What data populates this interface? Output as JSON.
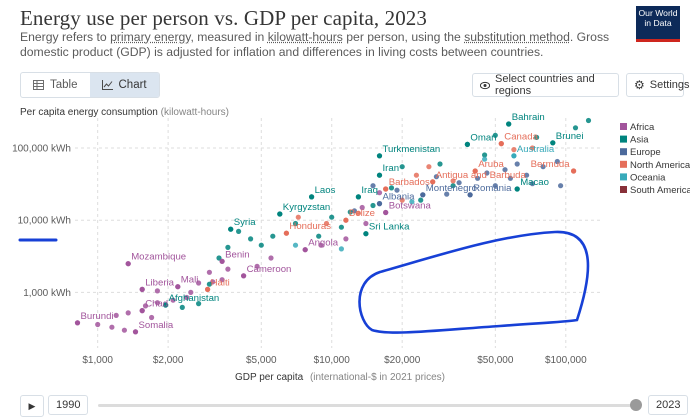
{
  "header": {
    "title": "Energy use per person vs. GDP per capita, 2023",
    "subtitle_parts": [
      {
        "text": "Energy refers to ",
        "link": false
      },
      {
        "text": "primary energy",
        "link": true
      },
      {
        "text": ", measured in ",
        "link": false
      },
      {
        "text": "kilowatt-hours",
        "link": true
      },
      {
        "text": " per person, using the ",
        "link": false
      },
      {
        "text": "substitution method",
        "link": true
      },
      {
        "text": ". Gross domestic product (GDP) is adjusted for inflation and differences in living costs between countries.",
        "link": false
      }
    ],
    "logo_line1": "Our World",
    "logo_line2": "in Data"
  },
  "controls": {
    "tab_table": "Table",
    "tab_chart": "Chart",
    "select_countries": "Select countries and regions",
    "settings": "Settings",
    "year_start": "1990",
    "year_end": "2023",
    "timeline_position": 1.0
  },
  "colors": {
    "Africa": "#a2559c",
    "Asia": "#00847e",
    "Europe": "#4c6a9c",
    "North America": "#e56e5a",
    "Oceania": "#38aaba",
    "South America": "#883039",
    "grid": "#dddddd",
    "annotation": "#1740d6"
  },
  "chart_data": {
    "type": "scatter",
    "title": "Energy use per person vs. GDP per capita, 2023",
    "ylabel": "Per capita energy consumption",
    "ylabel_unit": "(kilowatt-hours)",
    "xlabel": "GDP per capita",
    "xlabel_unit": "(international-$ in 2021 prices)",
    "xscale": "log",
    "yscale": "log",
    "xlim": [
      800,
      140000
    ],
    "ylim": [
      170,
      260000
    ],
    "x_ticks": [
      {
        "value": 1000,
        "label": "$1,000"
      },
      {
        "value": 2000,
        "label": "$2,000"
      },
      {
        "value": 5000,
        "label": "$5,000"
      },
      {
        "value": 10000,
        "label": "$10,000"
      },
      {
        "value": 20000,
        "label": "$20,000"
      },
      {
        "value": 50000,
        "label": "$50,000"
      },
      {
        "value": 100000,
        "label": "$100,000"
      }
    ],
    "y_ticks": [
      {
        "value": 1000,
        "label": "1,000 kWh"
      },
      {
        "value": 10000,
        "label": "10,000 kWh"
      },
      {
        "value": 100000,
        "label": "100,000 kWh"
      }
    ],
    "legend": [
      "Africa",
      "Asia",
      "Europe",
      "North America",
      "Oceania",
      "South America"
    ],
    "legend_position": "right",
    "labeled_points": [
      {
        "name": "Bahrain",
        "region": "Asia",
        "x": 57000,
        "y": 215000
      },
      {
        "name": "Oman",
        "region": "Asia",
        "x": 38000,
        "y": 112000
      },
      {
        "name": "Canada",
        "region": "North America",
        "x": 53000,
        "y": 115000
      },
      {
        "name": "Brunei",
        "region": "Asia",
        "x": 88000,
        "y": 118000
      },
      {
        "name": "Australia",
        "region": "Oceania",
        "x": 60000,
        "y": 78000
      },
      {
        "name": "Turkmenistan",
        "region": "Asia",
        "x": 16000,
        "y": 78000
      },
      {
        "name": "Aruba",
        "region": "North America",
        "x": 41000,
        "y": 48000
      },
      {
        "name": "Bermuda",
        "region": "North America",
        "x": 108000,
        "y": 48000
      },
      {
        "name": "Iran",
        "region": "Asia",
        "x": 16000,
        "y": 42000
      },
      {
        "name": "Antigua and Barbuda",
        "region": "North America",
        "x": 27000,
        "y": 34000
      },
      {
        "name": "Barbados",
        "region": "North America",
        "x": 17000,
        "y": 27000
      },
      {
        "name": "Macao",
        "region": "Asia",
        "x": 62000,
        "y": 27000
      },
      {
        "name": "Montenegro",
        "region": "Europe",
        "x": 24500,
        "y": 22500
      },
      {
        "name": "Romania",
        "region": "Europe",
        "x": 39000,
        "y": 22500
      },
      {
        "name": "Laos",
        "region": "Asia",
        "x": 8200,
        "y": 21000
      },
      {
        "name": "Iraq",
        "region": "Asia",
        "x": 13000,
        "y": 21000
      },
      {
        "name": "Albania",
        "region": "Europe",
        "x": 16000,
        "y": 17000
      },
      {
        "name": "Kyrgyzstan",
        "region": "Asia",
        "x": 6000,
        "y": 12200
      },
      {
        "name": "Botswana",
        "region": "Africa",
        "x": 17000,
        "y": 12800
      },
      {
        "name": "Belize",
        "region": "North America",
        "x": 11500,
        "y": 10000
      },
      {
        "name": "Syria",
        "region": "Asia",
        "x": 3700,
        "y": 7500
      },
      {
        "name": "Honduras",
        "region": "North America",
        "x": 6400,
        "y": 6600
      },
      {
        "name": "Sri Lanka",
        "region": "Asia",
        "x": 14000,
        "y": 6500
      },
      {
        "name": "Angola",
        "region": "Africa",
        "x": 7700,
        "y": 3900
      },
      {
        "name": "Mozambique",
        "region": "Africa",
        "x": 1350,
        "y": 2500
      },
      {
        "name": "Benin",
        "region": "Africa",
        "x": 3400,
        "y": 2700
      },
      {
        "name": "Cameroon",
        "region": "Africa",
        "x": 4200,
        "y": 1700
      },
      {
        "name": "Liberia",
        "region": "Africa",
        "x": 1550,
        "y": 1100
      },
      {
        "name": "Mali",
        "region": "Africa",
        "x": 2200,
        "y": 1200
      },
      {
        "name": "Haiti",
        "region": "North America",
        "x": 2950,
        "y": 1100
      },
      {
        "name": "Afghanistan",
        "region": "Asia",
        "x": 1950,
        "y": 670
      },
      {
        "name": "Chad",
        "region": "Africa",
        "x": 1550,
        "y": 560
      },
      {
        "name": "Burundi",
        "region": "Africa",
        "x": 820,
        "y": 380
      },
      {
        "name": "Somalia",
        "region": "Africa",
        "x": 1450,
        "y": 285
      }
    ],
    "points": [
      {
        "region": "Africa",
        "x": 820,
        "y": 380
      },
      {
        "region": "Africa",
        "x": 1000,
        "y": 360
      },
      {
        "region": "Africa",
        "x": 1150,
        "y": 330
      },
      {
        "region": "Africa",
        "x": 1300,
        "y": 300
      },
      {
        "region": "Africa",
        "x": 1450,
        "y": 285
      },
      {
        "region": "Africa",
        "x": 1200,
        "y": 480
      },
      {
        "region": "Africa",
        "x": 1350,
        "y": 520
      },
      {
        "region": "Africa",
        "x": 1550,
        "y": 560
      },
      {
        "region": "Africa",
        "x": 1700,
        "y": 450
      },
      {
        "region": "Africa",
        "x": 1600,
        "y": 650
      },
      {
        "region": "Africa",
        "x": 1800,
        "y": 720
      },
      {
        "region": "Africa",
        "x": 2100,
        "y": 780
      },
      {
        "region": "Africa",
        "x": 2400,
        "y": 850
      },
      {
        "region": "Africa",
        "x": 1550,
        "y": 1100
      },
      {
        "region": "Africa",
        "x": 1800,
        "y": 1050
      },
      {
        "region": "Africa",
        "x": 2200,
        "y": 1200
      },
      {
        "region": "Africa",
        "x": 2500,
        "y": 1000
      },
      {
        "region": "Africa",
        "x": 2700,
        "y": 1350
      },
      {
        "region": "Africa",
        "x": 3100,
        "y": 1400
      },
      {
        "region": "Africa",
        "x": 3400,
        "y": 1500
      },
      {
        "region": "Africa",
        "x": 3000,
        "y": 1900
      },
      {
        "region": "Africa",
        "x": 3600,
        "y": 2100
      },
      {
        "region": "Africa",
        "x": 3400,
        "y": 2700
      },
      {
        "region": "Africa",
        "x": 4200,
        "y": 1700
      },
      {
        "region": "Africa",
        "x": 4800,
        "y": 2300
      },
      {
        "region": "Africa",
        "x": 1350,
        "y": 2500
      },
      {
        "region": "Africa",
        "x": 5500,
        "y": 3000
      },
      {
        "region": "Africa",
        "x": 7700,
        "y": 3900
      },
      {
        "region": "Africa",
        "x": 9000,
        "y": 4500
      },
      {
        "region": "Africa",
        "x": 11500,
        "y": 5500
      },
      {
        "region": "Africa",
        "x": 14000,
        "y": 9000
      },
      {
        "region": "Africa",
        "x": 17000,
        "y": 12800
      },
      {
        "region": "Africa",
        "x": 13500,
        "y": 15000
      },
      {
        "region": "Africa",
        "x": 16000,
        "y": 24000
      },
      {
        "region": "Asia",
        "x": 1950,
        "y": 670
      },
      {
        "region": "Asia",
        "x": 2300,
        "y": 620
      },
      {
        "region": "Asia",
        "x": 2700,
        "y": 700
      },
      {
        "region": "Asia",
        "x": 3000,
        "y": 1300
      },
      {
        "region": "Asia",
        "x": 3300,
        "y": 3000
      },
      {
        "region": "Asia",
        "x": 3600,
        "y": 4200
      },
      {
        "region": "Asia",
        "x": 3700,
        "y": 7500
      },
      {
        "region": "Asia",
        "x": 4000,
        "y": 7000
      },
      {
        "region": "Asia",
        "x": 4500,
        "y": 5500
      },
      {
        "region": "Asia",
        "x": 5000,
        "y": 4500
      },
      {
        "region": "Asia",
        "x": 5600,
        "y": 6000
      },
      {
        "region": "Asia",
        "x": 6000,
        "y": 12200
      },
      {
        "region": "Asia",
        "x": 7000,
        "y": 9000
      },
      {
        "region": "Asia",
        "x": 8200,
        "y": 21000
      },
      {
        "region": "Asia",
        "x": 8800,
        "y": 6000
      },
      {
        "region": "Asia",
        "x": 10000,
        "y": 11000
      },
      {
        "region": "Asia",
        "x": 11000,
        "y": 8000
      },
      {
        "region": "Asia",
        "x": 12000,
        "y": 13000
      },
      {
        "region": "Asia",
        "x": 13000,
        "y": 21000
      },
      {
        "region": "Asia",
        "x": 14000,
        "y": 6500
      },
      {
        "region": "Asia",
        "x": 15000,
        "y": 16000
      },
      {
        "region": "Asia",
        "x": 16000,
        "y": 42000
      },
      {
        "region": "Asia",
        "x": 16000,
        "y": 78000
      },
      {
        "region": "Asia",
        "x": 18000,
        "y": 28000
      },
      {
        "region": "Asia",
        "x": 20000,
        "y": 55000
      },
      {
        "region": "Asia",
        "x": 24000,
        "y": 19000
      },
      {
        "region": "Asia",
        "x": 29000,
        "y": 60000
      },
      {
        "region": "Asia",
        "x": 33000,
        "y": 30000
      },
      {
        "region": "Asia",
        "x": 38000,
        "y": 112000
      },
      {
        "region": "Asia",
        "x": 45000,
        "y": 80000
      },
      {
        "region": "Asia",
        "x": 57000,
        "y": 215000
      },
      {
        "region": "Asia",
        "x": 62000,
        "y": 27000
      },
      {
        "region": "Asia",
        "x": 75000,
        "y": 140000
      },
      {
        "region": "Asia",
        "x": 88000,
        "y": 118000
      },
      {
        "region": "Asia",
        "x": 110000,
        "y": 190000
      },
      {
        "region": "Asia",
        "x": 125000,
        "y": 240000
      },
      {
        "region": "Asia",
        "x": 50000,
        "y": 150000
      },
      {
        "region": "Europe",
        "x": 12500,
        "y": 13500
      },
      {
        "region": "Europe",
        "x": 16000,
        "y": 17000
      },
      {
        "region": "Europe",
        "x": 15000,
        "y": 30000
      },
      {
        "region": "Europe",
        "x": 19000,
        "y": 26000
      },
      {
        "region": "Europe",
        "x": 24500,
        "y": 22500
      },
      {
        "region": "Europe",
        "x": 28000,
        "y": 40000
      },
      {
        "region": "Europe",
        "x": 31000,
        "y": 23000
      },
      {
        "region": "Europe",
        "x": 35000,
        "y": 33000
      },
      {
        "region": "Europe",
        "x": 39000,
        "y": 22500
      },
      {
        "region": "Europe",
        "x": 42000,
        "y": 38000
      },
      {
        "region": "Europe",
        "x": 46000,
        "y": 45000
      },
      {
        "region": "Europe",
        "x": 50000,
        "y": 30000
      },
      {
        "region": "Europe",
        "x": 55000,
        "y": 50000
      },
      {
        "region": "Europe",
        "x": 58000,
        "y": 38000
      },
      {
        "region": "Europe",
        "x": 62000,
        "y": 60000
      },
      {
        "region": "Europe",
        "x": 68000,
        "y": 42000
      },
      {
        "region": "Europe",
        "x": 72000,
        "y": 32000
      },
      {
        "region": "Europe",
        "x": 80000,
        "y": 55000
      },
      {
        "region": "Europe",
        "x": 92000,
        "y": 65000
      },
      {
        "region": "Europe",
        "x": 95000,
        "y": 30000
      },
      {
        "region": "North America",
        "x": 2950,
        "y": 1100
      },
      {
        "region": "North America",
        "x": 6400,
        "y": 6600
      },
      {
        "region": "North America",
        "x": 7200,
        "y": 11000
      },
      {
        "region": "North America",
        "x": 9500,
        "y": 9000
      },
      {
        "region": "North America",
        "x": 11500,
        "y": 10000
      },
      {
        "region": "North America",
        "x": 13000,
        "y": 12500
      },
      {
        "region": "North America",
        "x": 17000,
        "y": 27000
      },
      {
        "region": "North America",
        "x": 20000,
        "y": 19000
      },
      {
        "region": "North America",
        "x": 23000,
        "y": 42000
      },
      {
        "region": "North America",
        "x": 26000,
        "y": 55000
      },
      {
        "region": "North America",
        "x": 27000,
        "y": 34000
      },
      {
        "region": "North America",
        "x": 33000,
        "y": 35000
      },
      {
        "region": "North America",
        "x": 41000,
        "y": 48000
      },
      {
        "region": "North America",
        "x": 53000,
        "y": 115000
      },
      {
        "region": "North America",
        "x": 60000,
        "y": 95000
      },
      {
        "region": "North America",
        "x": 72000,
        "y": 100000
      },
      {
        "region": "North America",
        "x": 108000,
        "y": 48000
      },
      {
        "region": "Oceania",
        "x": 7000,
        "y": 4500
      },
      {
        "region": "Oceania",
        "x": 11000,
        "y": 4000
      },
      {
        "region": "Oceania",
        "x": 22000,
        "y": 18000
      },
      {
        "region": "Oceania",
        "x": 45000,
        "y": 70000
      },
      {
        "region": "Oceania",
        "x": 60000,
        "y": 78000
      }
    ]
  }
}
